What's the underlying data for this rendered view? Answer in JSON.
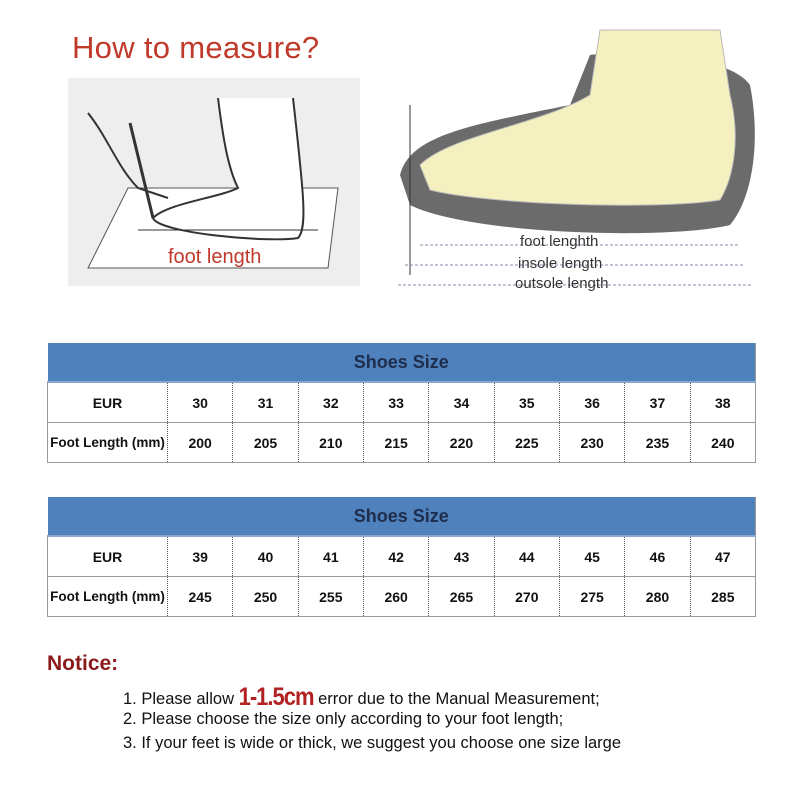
{
  "header": {
    "title": "How to measure?"
  },
  "illustration_left": {
    "label": "foot length"
  },
  "illustration_right": {
    "labels": [
      "foot lenghth",
      "insole length",
      "outsole length"
    ]
  },
  "tables": [
    {
      "title": "Shoes Size",
      "row_labels": [
        "EUR",
        "Foot Length (mm)"
      ],
      "eur": [
        "30",
        "31",
        "32",
        "33",
        "34",
        "35",
        "36",
        "37",
        "38"
      ],
      "foot_length": [
        "200",
        "205",
        "210",
        "215",
        "220",
        "225",
        "230",
        "235",
        "240"
      ]
    },
    {
      "title": "Shoes Size",
      "row_labels": [
        "EUR",
        "Foot Length (mm)"
      ],
      "eur": [
        "39",
        "40",
        "41",
        "42",
        "43",
        "44",
        "45",
        "46",
        "47"
      ],
      "foot_length": [
        "245",
        "250",
        "255",
        "260",
        "265",
        "270",
        "275",
        "280",
        "285"
      ]
    }
  ],
  "notice": {
    "heading": "Notice:",
    "line1_pre": "1. Please allow ",
    "line1_highlight": "1-1.5cm",
    "line1_post": " error due to the Manual Measurement;",
    "line2": "2. Please choose the size only according to your foot length;",
    "line3": "3. If your feet is wide or thick, we suggest you choose one size large"
  },
  "colors": {
    "title": "#c0392b",
    "table_header": "#4f81bd",
    "notice": "#8b1a1a"
  }
}
